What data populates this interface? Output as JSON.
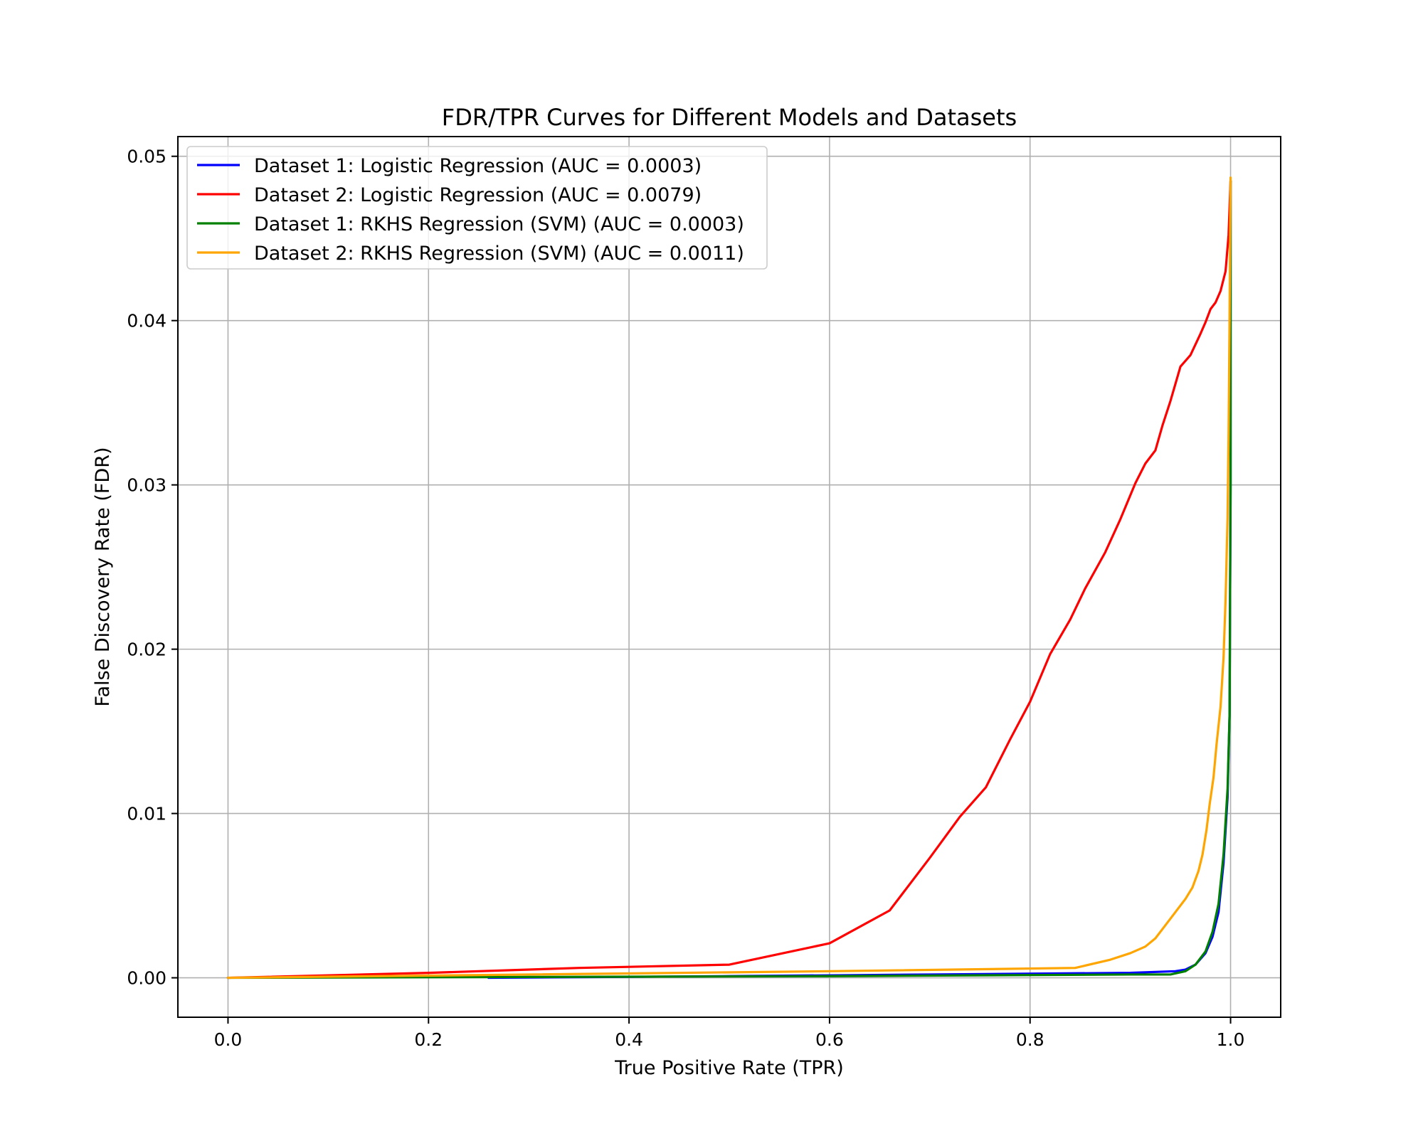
{
  "chart_data": {
    "type": "line",
    "title": "FDR/TPR Curves for Different Models and Datasets",
    "xlabel": "True Positive Rate (TPR)",
    "ylabel": "False Discovery Rate (FDR)",
    "xlim": [
      -0.05,
      1.05
    ],
    "ylim": [
      -0.0024,
      0.0512
    ],
    "xticks": [
      0.0,
      0.2,
      0.4,
      0.6,
      0.8,
      1.0
    ],
    "xtick_labels": [
      "0.0",
      "0.2",
      "0.4",
      "0.6",
      "0.8",
      "1.0"
    ],
    "yticks": [
      0.0,
      0.01,
      0.02,
      0.03,
      0.04,
      0.05
    ],
    "ytick_labels": [
      "0.00",
      "0.01",
      "0.02",
      "0.03",
      "0.04",
      "0.05"
    ],
    "grid": true,
    "legend_position": "top-left",
    "series": [
      {
        "name": "Dataset 1: Logistic Regression (AUC = 0.0003)",
        "color": "#0000ff",
        "x": [
          0.26,
          0.5,
          0.7,
          0.9,
          0.945,
          0.955,
          0.965,
          0.975,
          0.982,
          0.988,
          0.993,
          0.997,
          0.999,
          1.0,
          1.0
        ],
        "y": [
          0.0,
          0.0001,
          0.0002,
          0.0003,
          0.0004,
          0.0005,
          0.0008,
          0.0015,
          0.0025,
          0.004,
          0.007,
          0.011,
          0.016,
          0.03,
          0.0485
        ]
      },
      {
        "name": "Dataset 2: Logistic Regression (AUC = 0.0079)",
        "color": "#ff0000",
        "x": [
          0.0,
          0.2,
          0.35,
          0.5,
          0.6,
          0.66,
          0.7,
          0.73,
          0.756,
          0.78,
          0.8,
          0.82,
          0.84,
          0.855,
          0.875,
          0.89,
          0.905,
          0.915,
          0.925,
          0.932,
          0.94,
          0.95,
          0.96,
          0.97,
          0.975,
          0.98,
          0.985,
          0.99,
          0.995,
          0.998,
          1.0
        ],
        "y": [
          0.0,
          0.0003,
          0.0006,
          0.0008,
          0.0021,
          0.0041,
          0.0073,
          0.0098,
          0.0116,
          0.0145,
          0.0168,
          0.0197,
          0.0218,
          0.0237,
          0.0259,
          0.0279,
          0.0301,
          0.0313,
          0.0321,
          0.0336,
          0.0351,
          0.0372,
          0.0379,
          0.0392,
          0.0399,
          0.0407,
          0.0411,
          0.0418,
          0.043,
          0.0452,
          0.0485
        ]
      },
      {
        "name": "Dataset 1: RKHS Regression (SVM) (AUC = 0.0003)",
        "color": "#008000",
        "x": [
          0.0,
          0.3,
          0.6,
          0.9,
          0.94,
          0.955,
          0.965,
          0.975,
          0.982,
          0.988,
          0.993,
          0.997,
          0.999,
          1.0,
          1.0
        ],
        "y": [
          0.0,
          5e-05,
          0.0001,
          0.0002,
          0.0002,
          0.0004,
          0.0008,
          0.0016,
          0.0028,
          0.0045,
          0.0075,
          0.0115,
          0.016,
          0.03,
          0.0485
        ]
      },
      {
        "name": "Dataset 2: RKHS Regression (SVM) (AUC = 0.0011)",
        "color": "#ffa500",
        "x": [
          0.0,
          0.3,
          0.6,
          0.845,
          0.88,
          0.9,
          0.915,
          0.925,
          0.935,
          0.945,
          0.955,
          0.962,
          0.968,
          0.972,
          0.976,
          0.979,
          0.983,
          0.986,
          0.99,
          0.993,
          0.995,
          0.997,
          0.998,
          0.999,
          1.0
        ],
        "y": [
          0.0,
          0.0002,
          0.0004,
          0.0006,
          0.0011,
          0.0015,
          0.0019,
          0.0024,
          0.0032,
          0.004,
          0.0048,
          0.0055,
          0.0065,
          0.0075,
          0.009,
          0.0105,
          0.0122,
          0.0142,
          0.0165,
          0.0195,
          0.023,
          0.028,
          0.033,
          0.04,
          0.0487
        ]
      }
    ]
  }
}
